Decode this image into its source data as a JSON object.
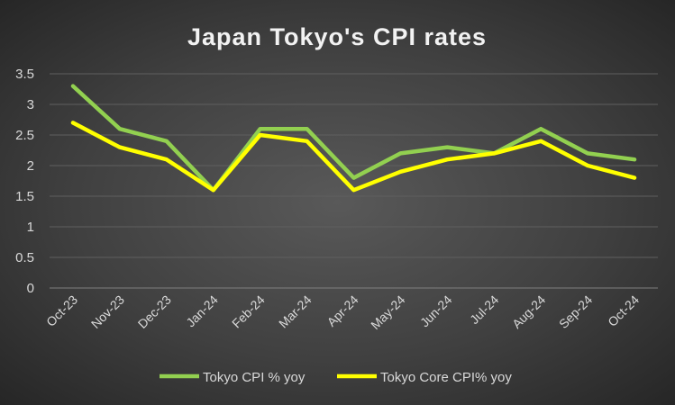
{
  "chart_data": {
    "type": "line",
    "title": "Japan Tokyo's CPI rates",
    "categories": [
      "Oct-23",
      "Nov-23",
      "Dec-23",
      "Jan-24",
      "Feb-24",
      "Mar-24",
      "Apr-24",
      "May-24",
      "Jun-24",
      "Jul-24",
      "Aug-24",
      "Sep-24",
      "Oct-24"
    ],
    "series": [
      {
        "name": "Tokyo CPI % yoy",
        "color": "#92d050",
        "values": [
          3.3,
          2.6,
          2.4,
          1.6,
          2.6,
          2.6,
          1.8,
          2.2,
          2.3,
          2.2,
          2.6,
          2.2,
          2.1
        ]
      },
      {
        "name": "Tokyo Core CPI% yoy",
        "color": "#ffff00",
        "values": [
          2.7,
          2.3,
          2.1,
          1.6,
          2.5,
          2.4,
          1.6,
          1.9,
          2.1,
          2.2,
          2.4,
          2.0,
          1.8
        ]
      }
    ],
    "yticks": [
      "0",
      "0.5",
      "1",
      "1.5",
      "2",
      "2.5",
      "3",
      "3.5"
    ],
    "ylim": [
      0,
      3.5
    ],
    "grid": true,
    "legend": "bottom"
  }
}
